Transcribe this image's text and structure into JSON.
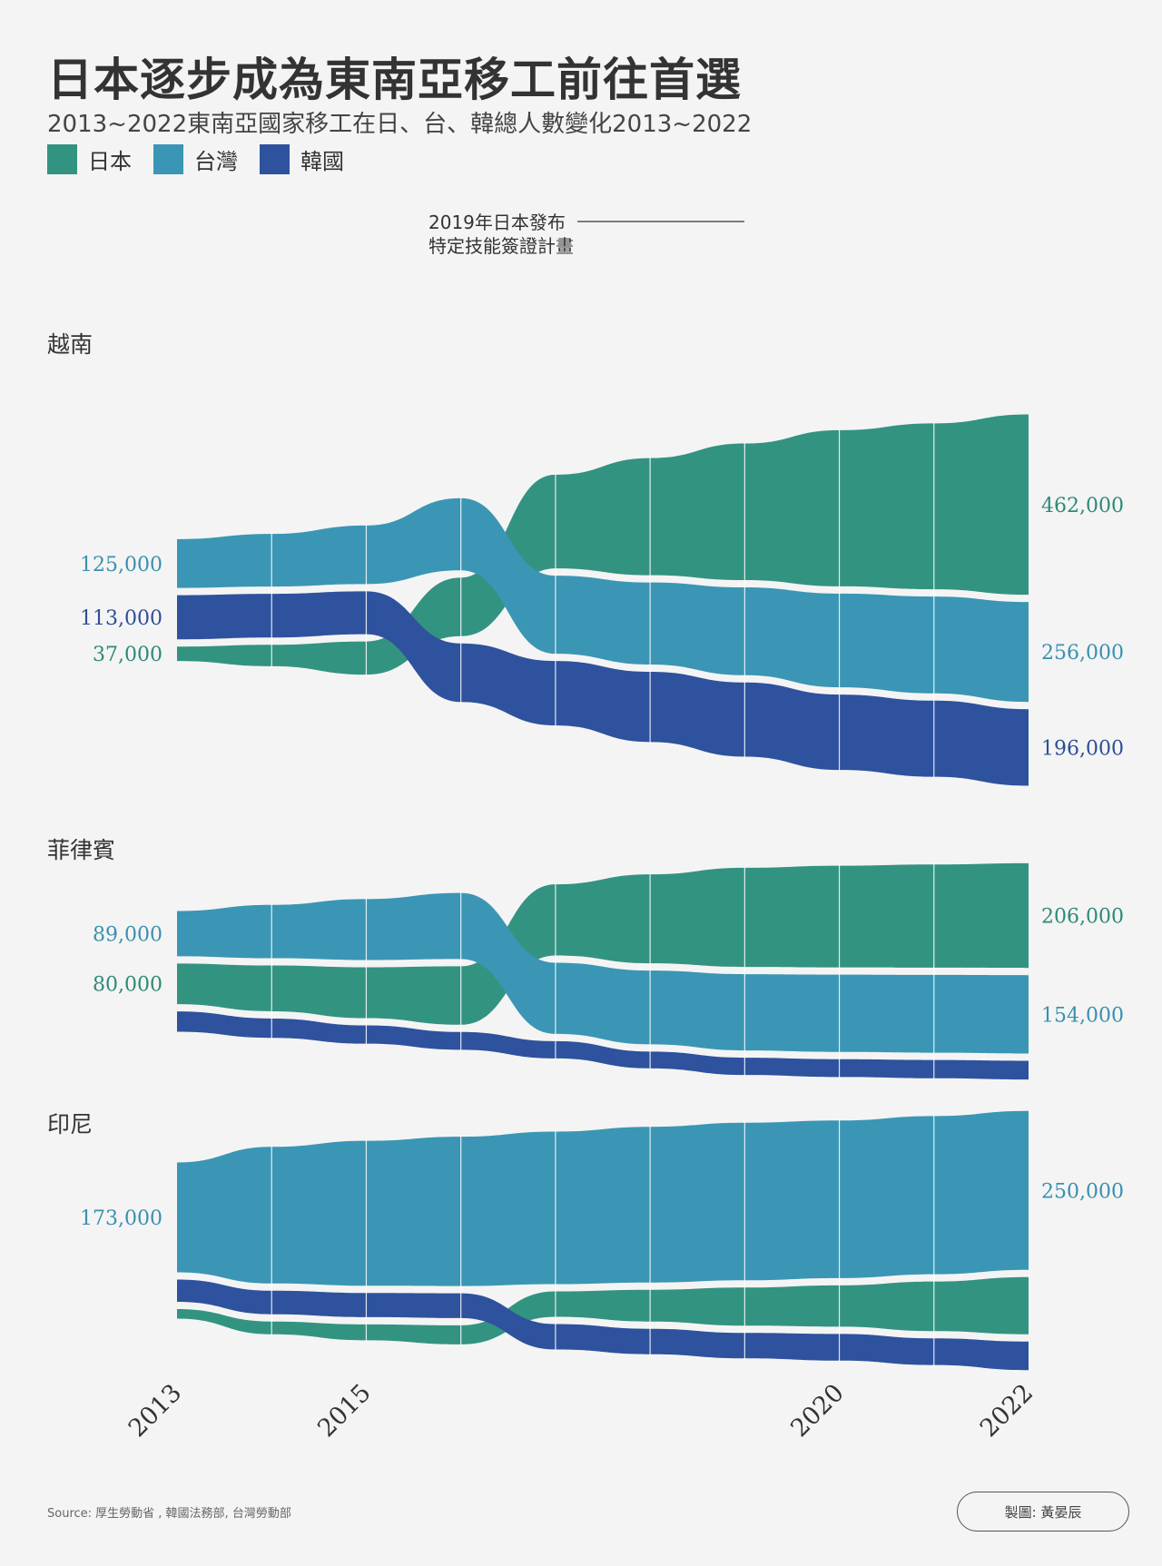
{
  "title": "日本逐步成為東南亞移工前往首選",
  "subtitle": "2013~2022東南亞國家移工在日、台、韓總人數變化2013~2022",
  "legend": [
    {
      "label": "日本",
      "color": "#339381"
    },
    {
      "label": "台灣",
      "color": "#3a96b4"
    },
    {
      "label": "韓國",
      "color": "#2e529d"
    }
  ],
  "annotation": {
    "line1": "2019年日本發布",
    "line2": "特定技能簽證計畫"
  },
  "source": "Source: 厚生勞動省 , 韓國法務部, 台灣勞動部",
  "credit": "製圖: 黃晏辰",
  "chart_data": [
    {
      "type": "area",
      "title": "越南",
      "x": [
        2013,
        2014,
        2015,
        2016,
        2017,
        2018,
        2019,
        2020,
        2021,
        2022
      ],
      "xticks": [
        "2013",
        "2015",
        "2020",
        "2022"
      ],
      "series": [
        {
          "name": "日本",
          "values": [
            37000,
            55000,
            85000,
            150000,
            240000,
            300000,
            350000,
            400000,
            425000,
            462000
          ]
        },
        {
          "name": "台灣",
          "values": [
            125000,
            135000,
            150000,
            185000,
            200000,
            210000,
            225000,
            240000,
            248000,
            256000
          ]
        },
        {
          "name": "韓國",
          "values": [
            113000,
            112000,
            110000,
            150000,
            165000,
            180000,
            190000,
            193000,
            195000,
            196000
          ]
        }
      ],
      "start_labels": [
        {
          "series": "台灣",
          "text": "125,000"
        },
        {
          "series": "韓國",
          "text": "113,000"
        },
        {
          "series": "日本",
          "text": "37,000"
        }
      ],
      "end_labels": [
        {
          "series": "日本",
          "text": "462,000"
        },
        {
          "series": "台灣",
          "text": "256,000"
        },
        {
          "series": "韓國",
          "text": "196,000"
        }
      ]
    },
    {
      "type": "area",
      "title": "菲律賓",
      "x": [
        2013,
        2014,
        2015,
        2016,
        2017,
        2018,
        2019,
        2020,
        2021,
        2022
      ],
      "xticks": [
        "2013",
        "2015",
        "2020",
        "2022"
      ],
      "series": [
        {
          "name": "日本",
          "values": [
            80000,
            90000,
            100000,
            115000,
            140000,
            175000,
            195000,
            200000,
            203000,
            206000
          ]
        },
        {
          "name": "台灣",
          "values": [
            89000,
            105000,
            120000,
            130000,
            140000,
            145000,
            150000,
            152000,
            153000,
            154000
          ]
        },
        {
          "name": "韓國",
          "values": [
            40000,
            38000,
            36000,
            35000,
            34000,
            33000,
            34000,
            35000,
            36000,
            37000
          ]
        }
      ],
      "start_labels": [
        {
          "series": "台灣",
          "text": "89,000"
        },
        {
          "series": "日本",
          "text": "80,000"
        }
      ],
      "end_labels": [
        {
          "series": "日本",
          "text": "206,000"
        },
        {
          "series": "台灣",
          "text": "154,000"
        }
      ]
    },
    {
      "type": "area",
      "title": "印尼",
      "x": [
        2013,
        2014,
        2015,
        2016,
        2017,
        2018,
        2019,
        2020,
        2021,
        2022
      ],
      "xticks": [
        "2013",
        "2015",
        "2020",
        "2022"
      ],
      "series": [
        {
          "name": "日本",
          "values": [
            15000,
            20000,
            25000,
            30000,
            40000,
            50000,
            60000,
            65000,
            78000,
            90000
          ]
        },
        {
          "name": "台灣",
          "values": [
            173000,
            215000,
            228000,
            235000,
            240000,
            245000,
            248000,
            248000,
            249000,
            250000
          ]
        },
        {
          "name": "韓國",
          "values": [
            35000,
            37000,
            38000,
            39000,
            40000,
            40000,
            40000,
            42000,
            42000,
            45000
          ]
        }
      ],
      "start_labels": [
        {
          "series": "台灣",
          "text": "173,000"
        }
      ],
      "end_labels": [
        {
          "series": "台灣",
          "text": "250,000"
        }
      ]
    }
  ]
}
